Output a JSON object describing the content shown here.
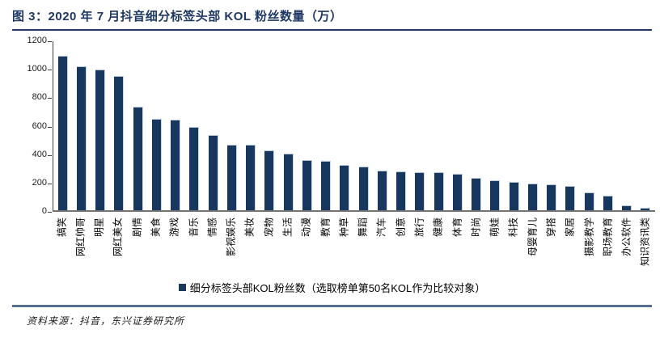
{
  "header": {
    "title": "图 3：2020 年 7 月抖音细分标签头部 KOL 粉丝数量（万）"
  },
  "legend": {
    "label": "细分标签头部KOL粉丝数（选取榜单第50名KOL作为比较对象）"
  },
  "footer": {
    "source": "资料来源：抖音，东兴证券研究所"
  },
  "theme": {
    "bar_color": "#17375E",
    "title_color": "#1F3864",
    "title_rule_color": "#1F3864",
    "footer_rule_color": "#54708E"
  },
  "chart_data": {
    "type": "bar",
    "title": "2020 年 7 月抖音细分标签头部 KOL 粉丝数量（万）",
    "xlabel": "",
    "ylabel": "",
    "ylim": [
      0,
      1200
    ],
    "yticks": [
      0,
      200,
      400,
      600,
      800,
      1000,
      1200
    ],
    "grid": false,
    "legend_position": "bottom",
    "legend_entries": [
      "细分标签头部KOL粉丝数（选取榜单第50名KOL作为比较对象）"
    ],
    "categories": [
      "搞笑",
      "网红帅哥",
      "明星",
      "网红美女",
      "剧情",
      "美食",
      "游戏",
      "音乐",
      "情感",
      "影视娱乐",
      "美妆",
      "宠物",
      "生活",
      "动漫",
      "教育",
      "种草",
      "舞蹈",
      "汽车",
      "创意",
      "旅行",
      "健康",
      "体育",
      "时尚",
      "萌娃",
      "科技",
      "母婴育儿",
      "穿搭",
      "家居",
      "摄影教学",
      "职场教育",
      "办公软件",
      "知识资讯类"
    ],
    "values": [
      1085,
      1015,
      990,
      945,
      730,
      645,
      640,
      585,
      530,
      460,
      460,
      420,
      400,
      355,
      345,
      320,
      310,
      280,
      275,
      265,
      265,
      255,
      230,
      210,
      200,
      190,
      185,
      170,
      125,
      100,
      35,
      20
    ]
  }
}
